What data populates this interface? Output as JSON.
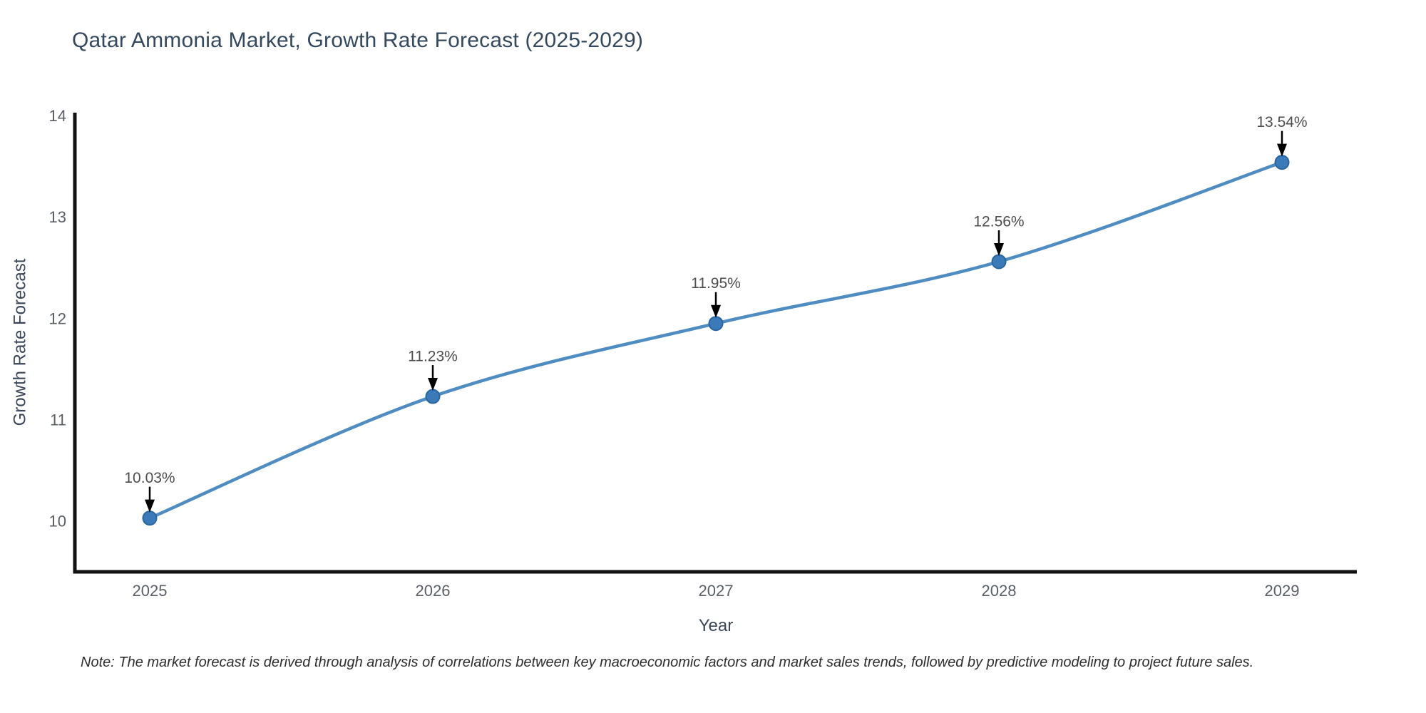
{
  "figure": {
    "title": "Qatar Ammonia Market, Growth Rate Forecast (2025-2029)",
    "x_axis_title": "Year",
    "y_axis_title": "Growth Rate Forecast",
    "note": "Note: The market forecast is derived through analysis of correlations between key macroeconomic factors and market sales trends, followed by predictive modeling to project future sales."
  },
  "chart_data": {
    "type": "line",
    "title": "Qatar Ammonia Market, Growth Rate Forecast (2025-2029)",
    "xlabel": "Year",
    "ylabel": "Growth Rate Forecast",
    "categories": [
      "2025",
      "2026",
      "2027",
      "2028",
      "2029"
    ],
    "values": [
      10.03,
      11.23,
      11.95,
      12.56,
      13.54
    ],
    "point_labels": [
      "10.03%",
      "11.23%",
      "11.95%",
      "12.56%",
      "13.54%"
    ],
    "yticks": [
      10,
      11,
      12,
      13,
      14
    ],
    "ylim": [
      9.5,
      14.03
    ],
    "grid": false,
    "legend": "none",
    "line_style": "spline-smooth",
    "marker_style": "filled-circle",
    "annotation_style": "value-label-with-down-arrow",
    "colors": {
      "line": "#4e8cc2",
      "marker": "#3a7ab8",
      "marker_border": "#2a669f",
      "axis": "#111111",
      "tick_label": "#5a5f66",
      "axis_title": "#3b4758",
      "title": "#35495e",
      "annotation_text": "#4d4d4d",
      "arrow": "#000000",
      "background": "#ffffff"
    }
  }
}
